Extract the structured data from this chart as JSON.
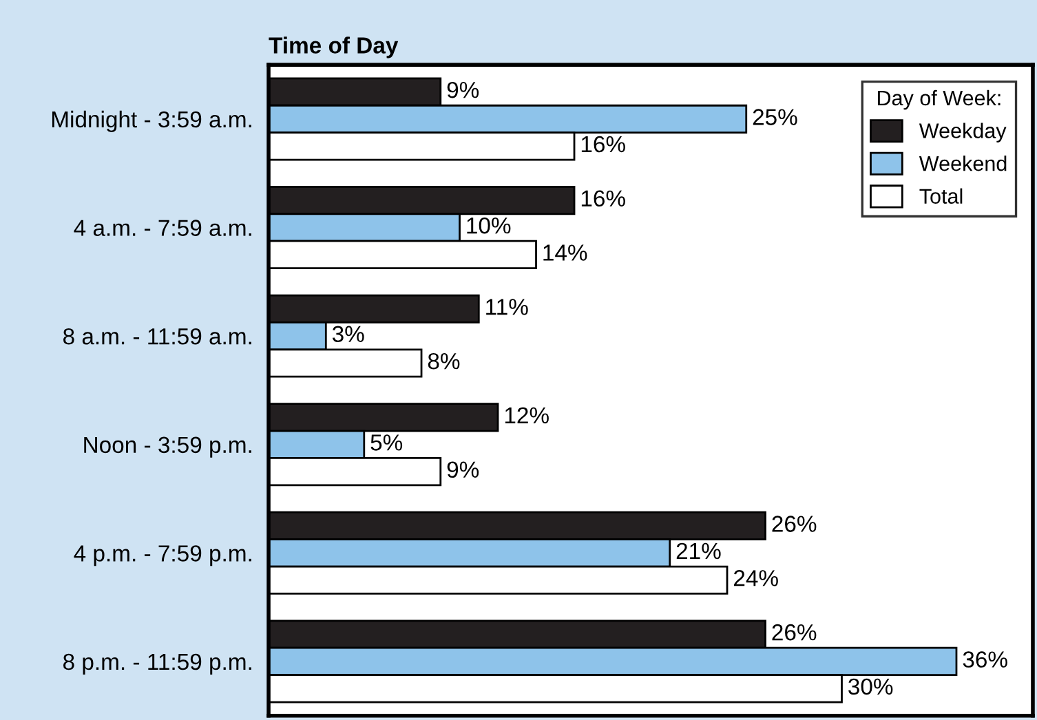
{
  "chart_data": {
    "type": "bar",
    "orientation": "horizontal",
    "title": "Time of Day",
    "legend_title": "Day of Week:",
    "legend": "top right",
    "grid": false,
    "tick_labels": "y",
    "xlim": [
      0,
      40
    ],
    "categories": [
      "Midnight - 3:59 a.m.",
      "4 a.m. - 7:59 a.m.",
      "8 a.m. - 11:59 a.m.",
      "Noon - 3:59 p.m.",
      "4 p.m. - 7:59 p.m.",
      "8 p.m. - 11:59 p.m."
    ],
    "series": [
      {
        "name": "Weekday",
        "color": "#231f20",
        "values": [
          9,
          16,
          11,
          12,
          26,
          26
        ],
        "value_labels": [
          "9%",
          "16%",
          "11%",
          "12%",
          "26%",
          "26%"
        ]
      },
      {
        "name": "Weekend",
        "color": "#8ec3ea",
        "values": [
          25,
          10,
          3,
          5,
          21,
          36
        ],
        "value_labels": [
          "25%",
          "10%",
          "3%",
          "5%",
          "21%",
          "36%"
        ]
      },
      {
        "name": "Total",
        "color": "#ffffff",
        "values": [
          16,
          14,
          8,
          9,
          24,
          30
        ],
        "value_labels": [
          "16%",
          "14%",
          "8%",
          "9%",
          "24%",
          "30%"
        ]
      }
    ]
  }
}
